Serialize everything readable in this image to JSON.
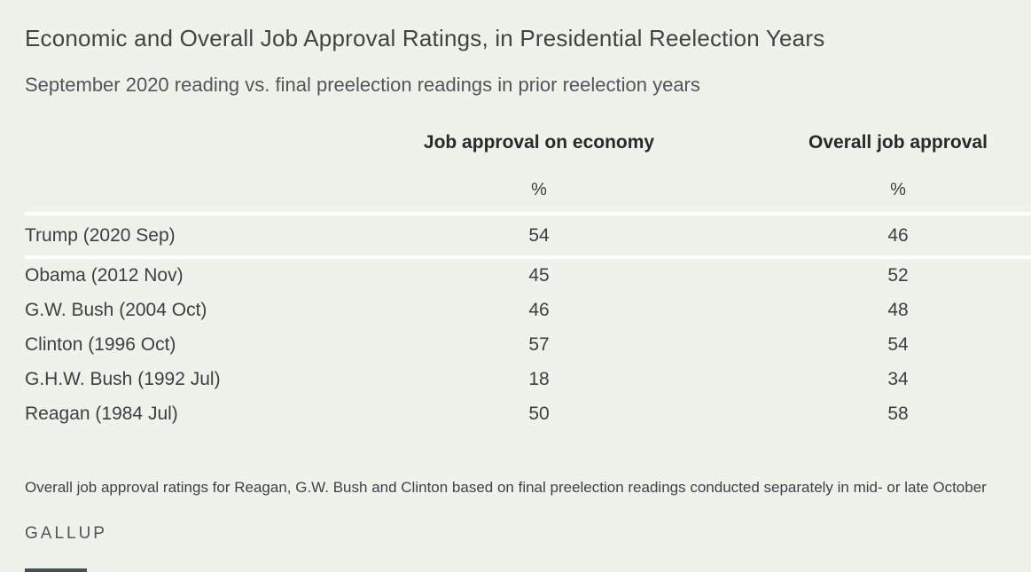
{
  "title": "Economic and Overall Job Approval Ratings, in Presidential Reelection Years",
  "subtitle": "September 2020 reading vs. final preelection readings in prior reelection years",
  "source": "GALLUP",
  "footnote": "Overall job approval ratings for Reagan, G.W. Bush and Clinton based on final preelection readings conducted separately in mid- or late October",
  "colors": {
    "background": "#edf3eb",
    "divider": "#ffffff",
    "text": "#3c4042",
    "header_text": "#27292b"
  },
  "chart_data": {
    "type": "table",
    "title": "Economic and Overall Job Approval Ratings, in Presidential Reelection Years",
    "subtitle": "September 2020 reading vs. final preelection readings in prior reelection years",
    "columns": [
      "",
      "Job approval on economy",
      "Overall job approval"
    ],
    "unit": "%",
    "rows": [
      {
        "label": "Trump (2020 Sep)",
        "economy": 54,
        "overall": 46
      },
      {
        "label": "Obama (2012 Nov)",
        "economy": 45,
        "overall": 52
      },
      {
        "label": "G.W. Bush (2004 Oct)",
        "economy": 46,
        "overall": 48
      },
      {
        "label": "Clinton (1996 Oct)",
        "economy": 57,
        "overall": 54
      },
      {
        "label": "G.H.W. Bush (1992 Jul)",
        "economy": 18,
        "overall": 34
      },
      {
        "label": "Reagan (1984 Jul)",
        "economy": 50,
        "overall": 58
      }
    ],
    "footnote": "Overall job approval ratings for Reagan, G.W. Bush and Clinton based on final preelection readings conducted separately in mid- or late October",
    "source": "GALLUP"
  }
}
